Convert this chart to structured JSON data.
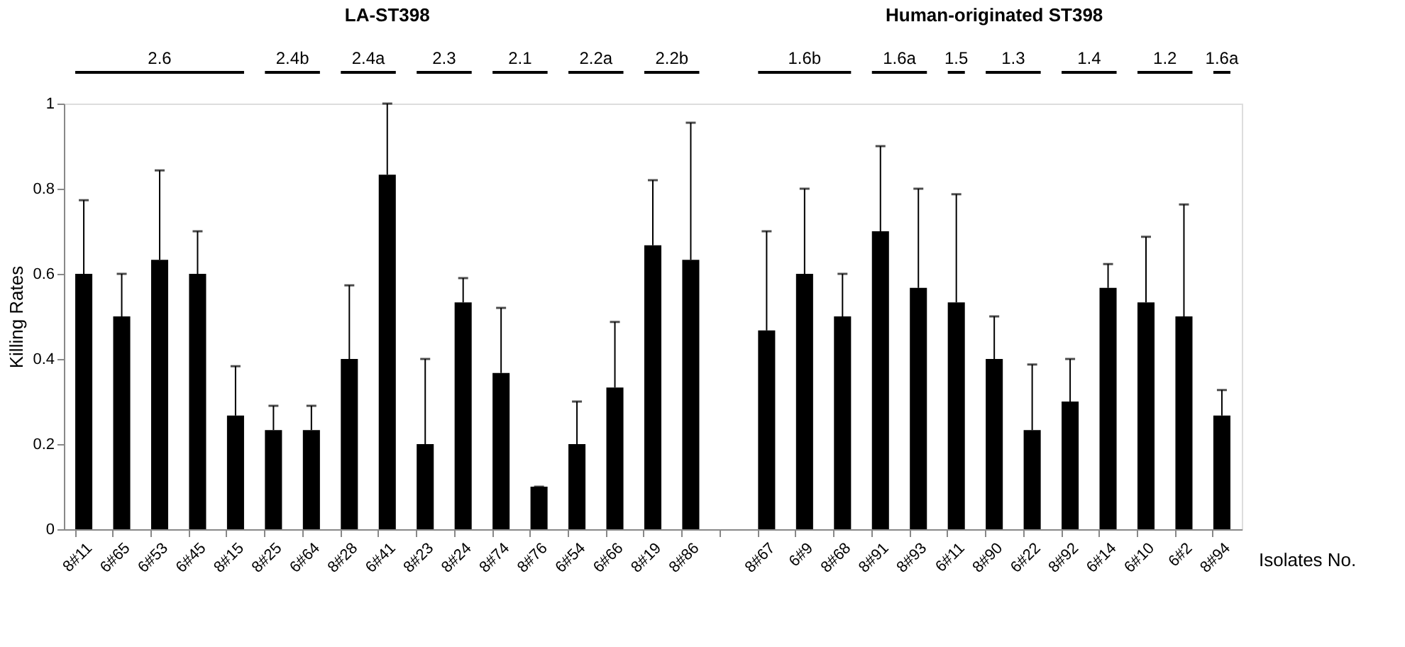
{
  "chart_data": {
    "type": "bar",
    "ylabel": "Killing Rates",
    "xlabel": "Isolates No.",
    "categories": [
      "8#11",
      "6#65",
      "6#53",
      "6#45",
      "8#15",
      "8#25",
      "6#64",
      "8#28",
      "6#41",
      "8#23",
      "8#24",
      "8#74",
      "8#76",
      "6#54",
      "6#66",
      "8#19",
      "8#86",
      null,
      "8#67",
      "6#9",
      "8#68",
      "8#91",
      "8#93",
      "6#11",
      "8#90",
      "6#22",
      "8#92",
      "6#14",
      "6#10",
      "6#2",
      "8#94"
    ],
    "values": [
      0.6,
      0.5,
      0.633,
      0.6,
      0.267,
      0.233,
      0.233,
      0.4,
      0.833,
      0.2,
      0.533,
      0.367,
      0.1,
      0.2,
      0.333,
      0.667,
      0.633,
      null,
      0.467,
      0.6,
      0.5,
      0.7,
      0.567,
      0.533,
      0.4,
      0.233,
      0.3,
      0.567,
      0.533,
      0.5,
      0.267
    ],
    "errors": [
      [
        0.6,
        0.773
      ],
      [
        0.5,
        0.6
      ],
      [
        0.633,
        0.843
      ],
      [
        0.6,
        0.7
      ],
      [
        0.267,
        0.383
      ],
      [
        0.233,
        0.29
      ],
      [
        0.233,
        0.29
      ],
      [
        0.4,
        0.573
      ],
      [
        0.833,
        1.0
      ],
      [
        0.2,
        0.4
      ],
      [
        0.533,
        0.59
      ],
      [
        0.367,
        0.52
      ],
      [
        0.1,
        0.1
      ],
      [
        0.2,
        0.3
      ],
      [
        0.333,
        0.487
      ],
      [
        0.667,
        0.82
      ],
      [
        0.633,
        0.955
      ],
      null,
      [
        0.467,
        0.7
      ],
      [
        0.6,
        0.8
      ],
      [
        0.5,
        0.6
      ],
      [
        0.7,
        0.9
      ],
      [
        0.567,
        0.8
      ],
      [
        0.533,
        0.787
      ],
      [
        0.4,
        0.5
      ],
      [
        0.233,
        0.387
      ],
      [
        0.3,
        0.4
      ],
      [
        0.567,
        0.623
      ],
      [
        0.533,
        0.687
      ],
      [
        0.5,
        0.763
      ],
      [
        0.267,
        0.327
      ]
    ],
    "color": "#000000",
    "ylim": [
      0,
      1
    ],
    "yticks": [
      0,
      0.2,
      0.4,
      0.6,
      0.8,
      1
    ],
    "grid": false,
    "annotations": [
      "LA-ST398",
      "Human-originated  ST398",
      "2.6",
      "2.4b",
      "2.4a",
      "2.3",
      "2.1",
      "2.2a",
      "2.2b",
      "1.6b",
      "1.6a",
      "1.5",
      "1.3",
      "1.4",
      "1.2",
      "1.6a"
    ]
  }
}
